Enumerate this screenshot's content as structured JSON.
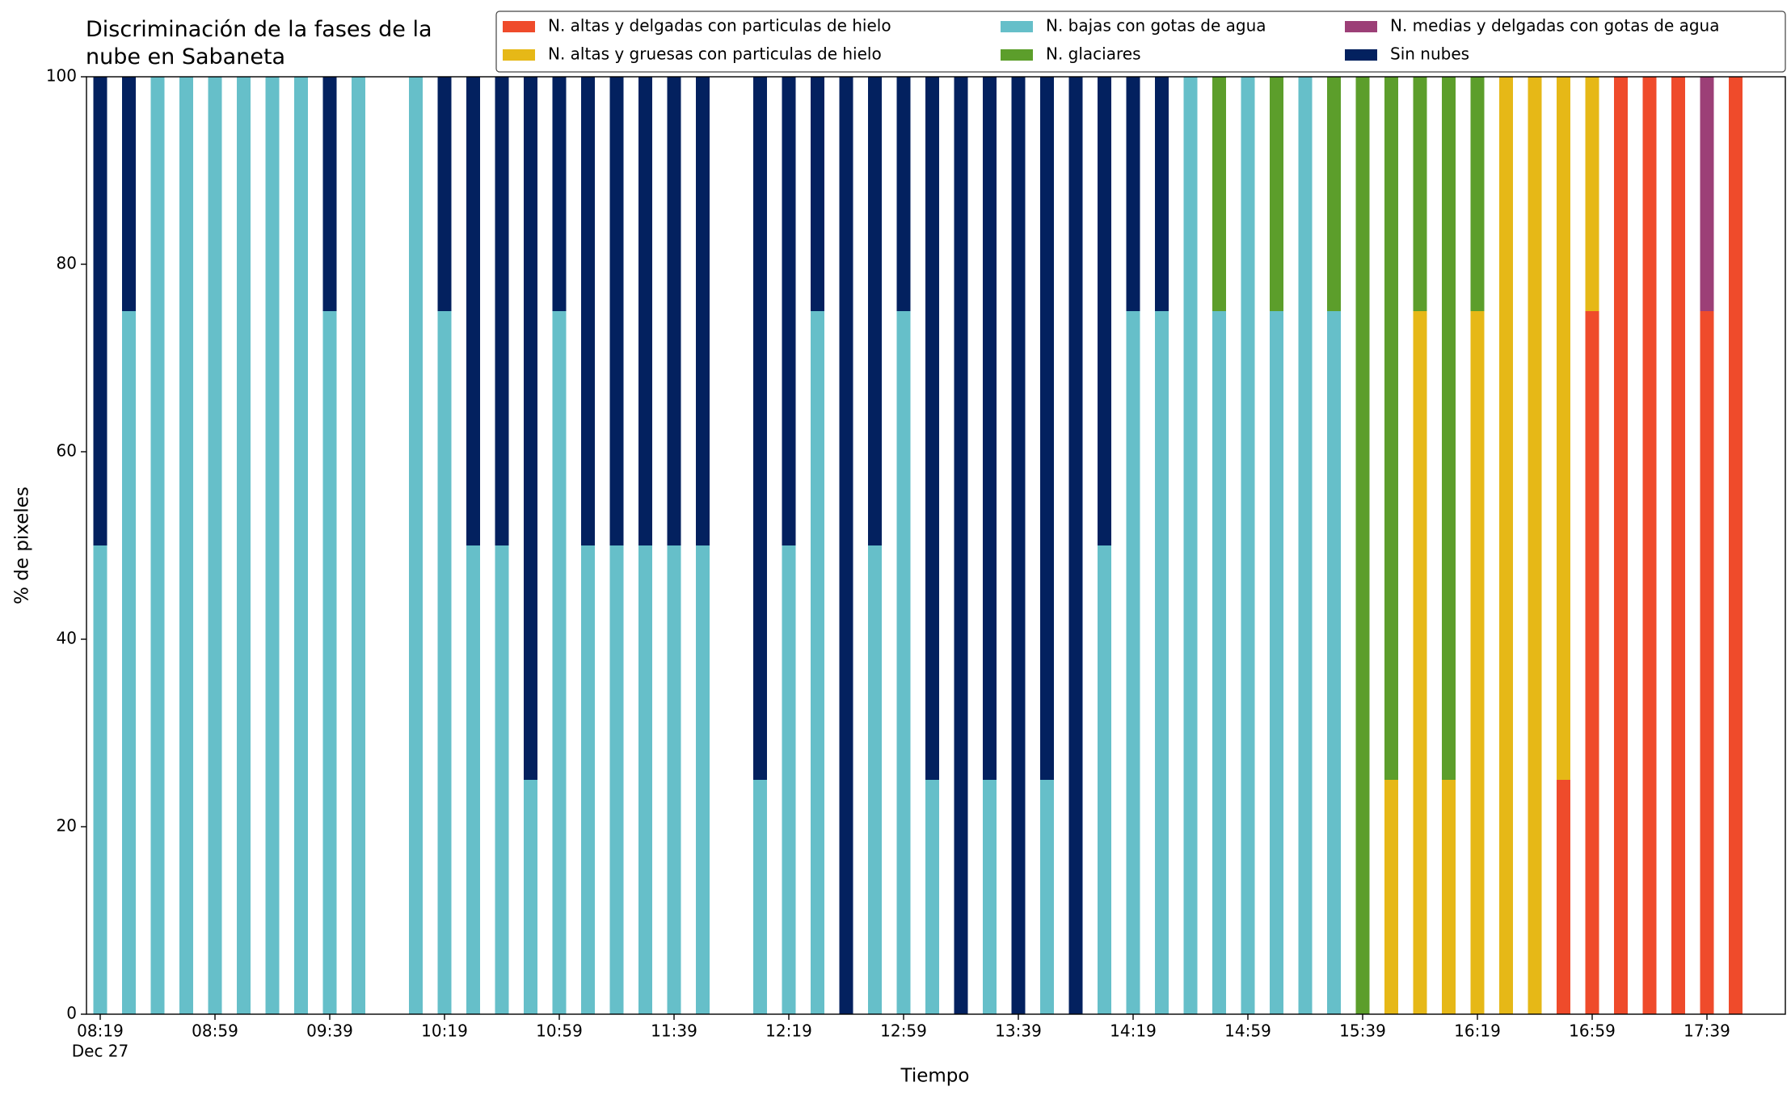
{
  "chart_data": {
    "type": "stacked_bar",
    "title": "Discriminación de la fases de la nube en Sabaneta",
    "x_label": "Tiempo",
    "y_label": "% de pixeles",
    "x_date_label": "Dec 27",
    "categories": [
      "08:19",
      "08:29",
      "08:39",
      "08:49",
      "08:59",
      "09:09",
      "09:19",
      "09:29",
      "09:39",
      "09:49",
      "09:59",
      "10:09",
      "10:19",
      "10:29",
      "10:39",
      "10:49",
      "10:59",
      "11:09",
      "11:19",
      "11:29",
      "11:39",
      "11:49",
      "11:59",
      "12:09",
      "12:19",
      "12:29",
      "12:39",
      "12:49",
      "12:59",
      "13:09",
      "13:19",
      "13:29",
      "13:39",
      "13:49",
      "13:59",
      "14:09",
      "14:19",
      "14:29",
      "14:39",
      "14:49",
      "14:59",
      "15:09",
      "15:19",
      "15:29",
      "15:39",
      "15:49",
      "15:59",
      "16:09",
      "16:19",
      "16:29",
      "16:39",
      "16:49",
      "16:59",
      "17:09",
      "17:19",
      "17:29",
      "17:39",
      "17:49"
    ],
    "xticks": [
      "08:19",
      "08:59",
      "09:39",
      "10:19",
      "10:59",
      "11:39",
      "12:19",
      "12:59",
      "13:39",
      "14:19",
      "14:59",
      "15:39",
      "16:19",
      "16:59",
      "17:39"
    ],
    "ylim": [
      0,
      100
    ],
    "yticks": [
      0,
      20,
      40,
      60,
      80,
      100
    ],
    "legend": "top-right",
    "series": [
      {
        "name": "N. altas y delgadas con particulas de hielo",
        "color": "#ef4b2b",
        "values": [
          0,
          0,
          0,
          0,
          0,
          0,
          0,
          0,
          0,
          0,
          0,
          0,
          0,
          0,
          0,
          0,
          0,
          0,
          0,
          0,
          0,
          0,
          0,
          0,
          0,
          0,
          0,
          0,
          0,
          0,
          0,
          0,
          0,
          0,
          0,
          0,
          0,
          0,
          0,
          0,
          0,
          0,
          0,
          0,
          0,
          0,
          0,
          0,
          0,
          0,
          0,
          25,
          75,
          100,
          100,
          100,
          75,
          100
        ]
      },
      {
        "name": "N. altas y gruesas con particulas de hielo",
        "color": "#e6b817",
        "values": [
          0,
          0,
          0,
          0,
          0,
          0,
          0,
          0,
          0,
          0,
          0,
          0,
          0,
          0,
          0,
          0,
          0,
          0,
          0,
          0,
          0,
          0,
          0,
          0,
          0,
          0,
          0,
          0,
          0,
          0,
          0,
          0,
          0,
          0,
          0,
          0,
          0,
          0,
          0,
          0,
          0,
          0,
          0,
          0,
          0,
          25,
          75,
          25,
          75,
          100,
          100,
          75,
          25,
          0,
          0,
          0,
          0,
          0
        ]
      },
      {
        "name": "N. bajas con gotas de agua",
        "color": "#66bfc9",
        "values": [
          50,
          75,
          100,
          100,
          100,
          100,
          100,
          100,
          75,
          100,
          0,
          100,
          75,
          50,
          50,
          25,
          75,
          50,
          50,
          50,
          50,
          50,
          0,
          25,
          50,
          75,
          0,
          50,
          75,
          25,
          0,
          25,
          0,
          25,
          0,
          50,
          75,
          75,
          100,
          75,
          100,
          75,
          100,
          75,
          0,
          0,
          0,
          0,
          0,
          0,
          0,
          0,
          0,
          0,
          0,
          0,
          0,
          0
        ]
      },
      {
        "name": "N. glaciares",
        "color": "#5c9e2b",
        "values": [
          0,
          0,
          0,
          0,
          0,
          0,
          0,
          0,
          0,
          0,
          0,
          0,
          0,
          0,
          0,
          0,
          0,
          0,
          0,
          0,
          0,
          0,
          0,
          0,
          0,
          0,
          0,
          0,
          0,
          0,
          0,
          0,
          0,
          0,
          0,
          0,
          0,
          0,
          0,
          25,
          0,
          25,
          0,
          25,
          100,
          75,
          25,
          75,
          25,
          0,
          0,
          0,
          0,
          0,
          0,
          0,
          0,
          0
        ]
      },
      {
        "name": "N. medias y delgadas con gotas de agua",
        "color": "#9c3f77",
        "values": [
          0,
          0,
          0,
          0,
          0,
          0,
          0,
          0,
          0,
          0,
          0,
          0,
          0,
          0,
          0,
          0,
          0,
          0,
          0,
          0,
          0,
          0,
          0,
          0,
          0,
          0,
          0,
          0,
          0,
          0,
          0,
          0,
          0,
          0,
          0,
          0,
          0,
          0,
          0,
          0,
          0,
          0,
          0,
          0,
          0,
          0,
          0,
          0,
          0,
          0,
          0,
          0,
          0,
          0,
          0,
          0,
          25,
          0
        ]
      },
      {
        "name": "Sin nubes",
        "color": "#03215f",
        "values": [
          50,
          25,
          0,
          0,
          0,
          0,
          0,
          0,
          25,
          0,
          0,
          0,
          25,
          50,
          50,
          75,
          25,
          50,
          50,
          50,
          50,
          50,
          0,
          75,
          50,
          25,
          100,
          50,
          25,
          75,
          100,
          75,
          100,
          75,
          100,
          50,
          25,
          25,
          0,
          0,
          0,
          0,
          0,
          0,
          0,
          0,
          0,
          0,
          0,
          0,
          0,
          0,
          0,
          0,
          0,
          0,
          0,
          0
        ]
      }
    ]
  }
}
